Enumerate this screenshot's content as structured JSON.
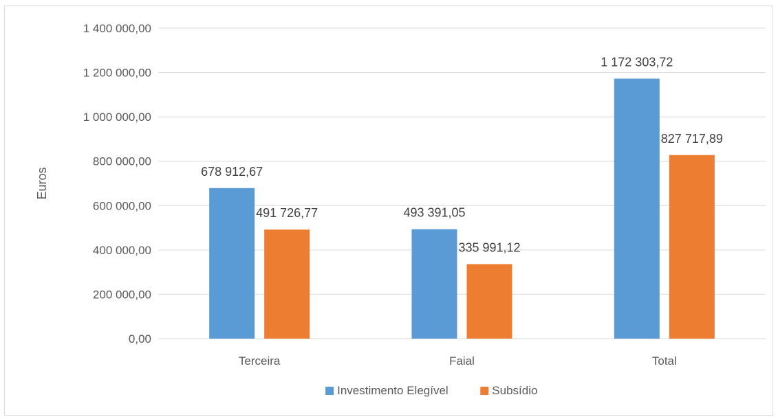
{
  "chart_data": {
    "type": "bar",
    "title": "",
    "xlabel": "",
    "ylabel": "Euros",
    "ylim": [
      0,
      1400000
    ],
    "yticks": [
      0,
      200000,
      400000,
      600000,
      800000,
      1000000,
      1200000,
      1400000
    ],
    "ytick_labels": [
      "0,00",
      "200 000,00",
      "400 000,00",
      "600 000,00",
      "800 000,00",
      "1 000 000,00",
      "1 200 000,00",
      "1 400 000,00"
    ],
    "categories": [
      "Terceira",
      "Faial",
      "Total"
    ],
    "series": [
      {
        "name": "Investimento Elegível",
        "color": "#5b9bd5",
        "values": [
          678912.67,
          493391.05,
          1172303.72
        ],
        "labels": [
          "678 912,67",
          "493 391,05",
          "1 172 303,72"
        ]
      },
      {
        "name": "Subsídio",
        "color": "#ed7d31",
        "values": [
          491726.77,
          335991.12,
          827717.89
        ],
        "labels": [
          "491 726,77",
          "335 991,12",
          "827 717,89"
        ]
      }
    ],
    "grid": true,
    "gridline_color": "#d9d9d9",
    "legend_position": "bottom"
  }
}
